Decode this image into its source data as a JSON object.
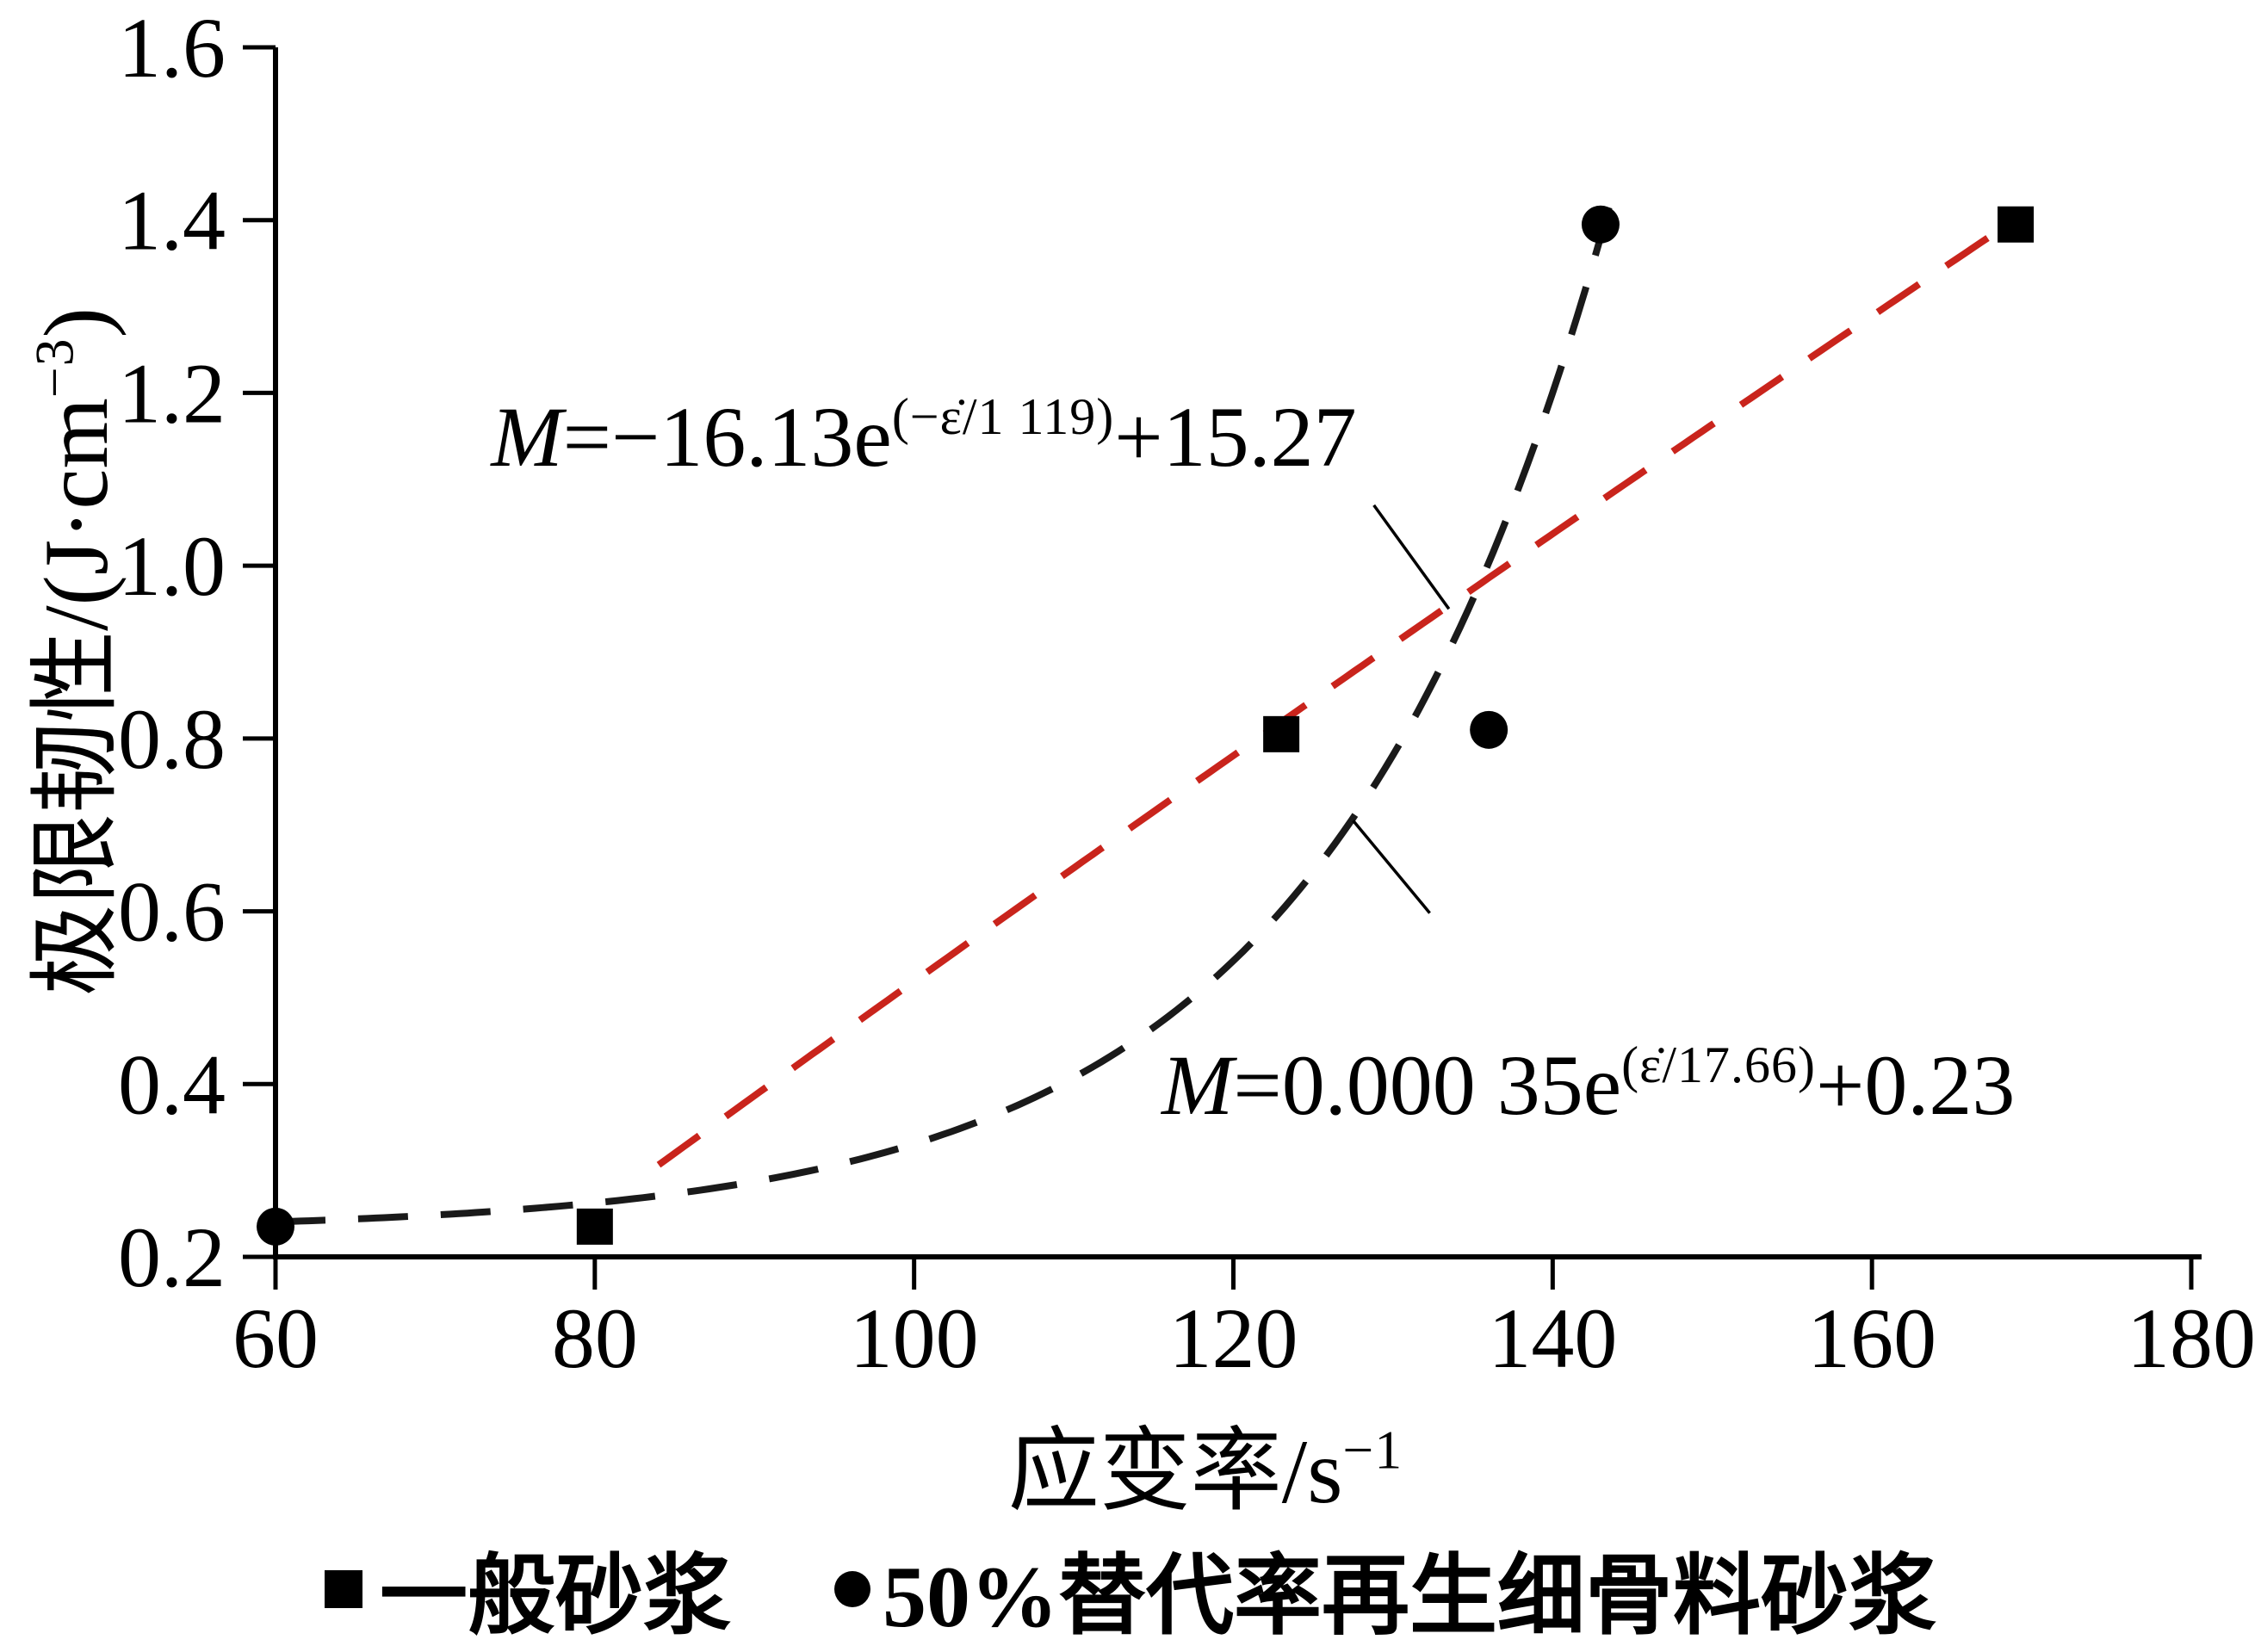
{
  "chart_data": {
    "type": "scatter",
    "title": "",
    "xlabel": "应变率/s⁻¹",
    "ylabel": "极限韧性/(J·cm⁻³)",
    "xlim": [
      60,
      180
    ],
    "ylim": [
      0.2,
      1.6
    ],
    "xticks": [
      60,
      80,
      100,
      120,
      140,
      160,
      180
    ],
    "yticks": [
      0.2,
      0.4,
      0.6,
      0.8,
      1.0,
      1.2,
      1.4,
      1.6
    ],
    "grid": false,
    "legend_position": "bottom",
    "series": [
      {
        "name": "一般砂浆",
        "marker": "square",
        "color": "#000000",
        "points": [
          [
            80,
            0.235
          ],
          [
            123,
            0.805
          ],
          [
            169,
            1.395
          ]
        ]
      },
      {
        "name": "50%替代率再生细骨料砂浆",
        "marker": "circle",
        "color": "#000000",
        "points": [
          [
            60,
            0.235
          ],
          [
            136,
            0.81
          ],
          [
            143,
            1.395
          ]
        ]
      }
    ],
    "fit_curves": [
      {
        "equation": "M=0.000 35e^(ε̇/17.66)+0.23",
        "a": 0.00035,
        "tau": 17.66,
        "sign": 1,
        "c": 0.23,
        "color": "#1a1a1a",
        "x_range": [
          60,
          143.6
        ],
        "style": "dashed"
      },
      {
        "equation": "M=−16.13e^(−ε̇/1 119)+15.27",
        "a": -16.13,
        "tau": 1119,
        "sign": -1,
        "c": 15.27,
        "color": "#c9241c",
        "x_range": [
          84,
          169
        ],
        "style": "dashed"
      }
    ],
    "annotations": [
      {
        "id": "ann-red",
        "var": "M",
        "pre": "=−16.13e",
        "sup": "(−ε̇/1 119)",
        "post": "+15.27",
        "text_pos": [
          73.5,
          1.205
        ],
        "leader": [
          [
            128.8,
            1.07
          ],
          [
            133.5,
            0.95
          ]
        ]
      },
      {
        "id": "ann-black",
        "var": "M",
        "pre": "=0.000 35e",
        "sup": "(ε̇/17.66)",
        "post": "+0.23",
        "text_pos": [
          115.5,
          0.455
        ],
        "leader": [
          [
            127.5,
            0.705
          ],
          [
            132.3,
            0.598
          ]
        ]
      }
    ]
  },
  "labels": {
    "xlabel": {
      "main": "应变率/s",
      "sup": "−1"
    },
    "ylabel": {
      "main": "极限韧性/(J·cm",
      "sup": "−3",
      "tail": ")"
    }
  }
}
